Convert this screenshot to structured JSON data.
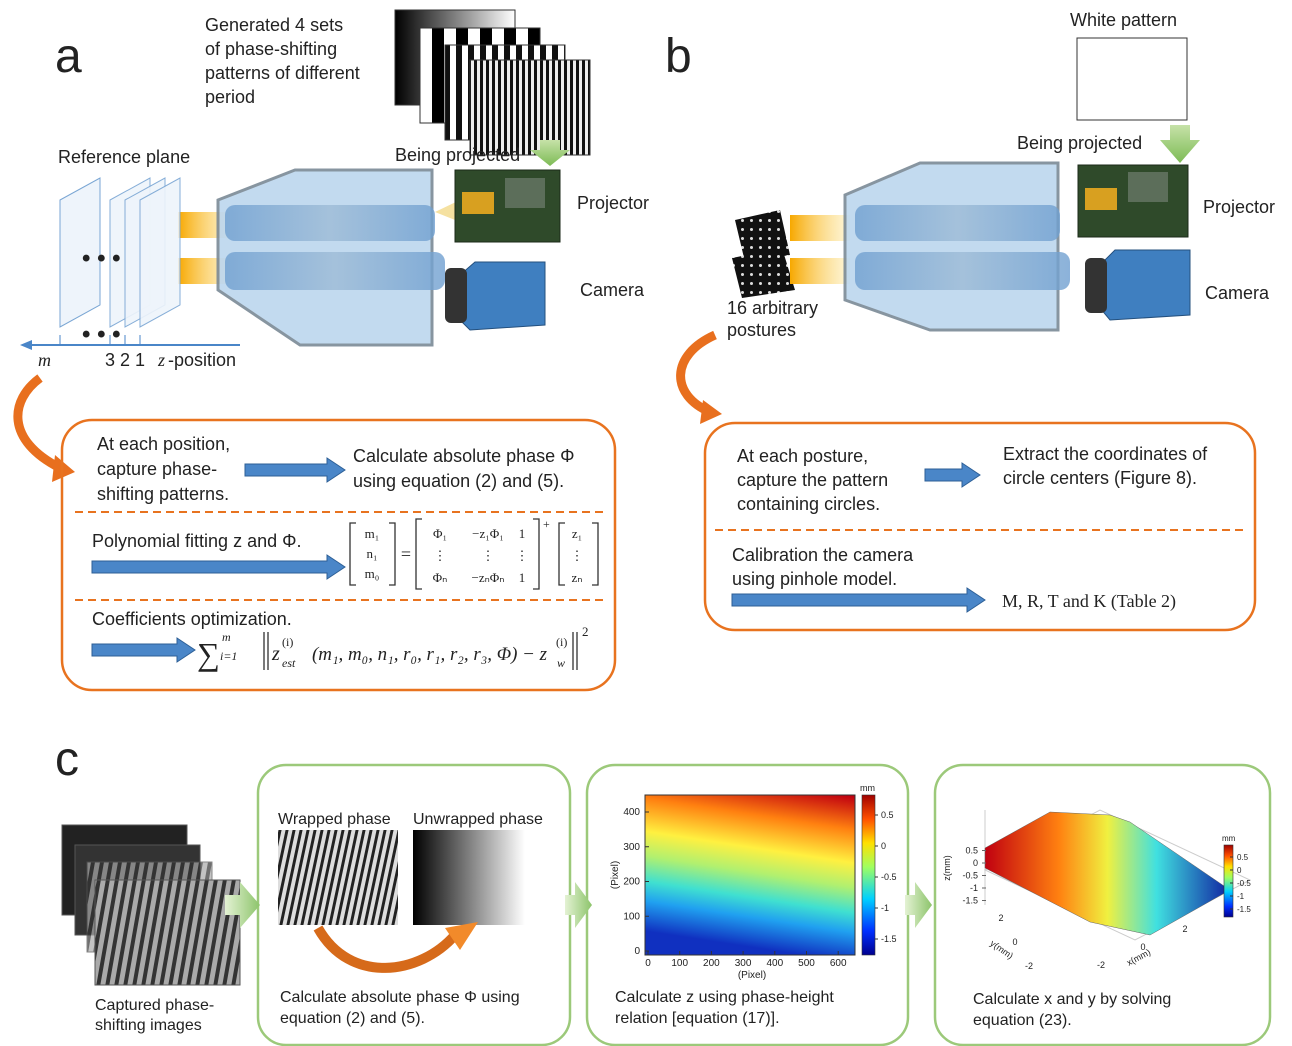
{
  "panel_a": {
    "label": "a",
    "pattern_caption": [
      "Generated 4 sets",
      "of phase-shifting",
      "patterns of different",
      "period"
    ],
    "being_projected": "Being projected",
    "reference_plane": "Reference plane",
    "projector": "Projector",
    "camera": "Camera",
    "plane_axis": {
      "m": "m",
      "positions": "3 2 1",
      "z": "z",
      "z_position": "-position"
    },
    "step1": {
      "left": [
        "At each position,",
        "capture phase-",
        "shifting patterns."
      ],
      "right": [
        "Calculate absolute phase Φ",
        "using equation (2) and (5)."
      ]
    },
    "step2": {
      "text": "Polynomial fitting z and Φ.",
      "matrix_lhs": [
        "m₁",
        "n₁",
        "m₀"
      ],
      "equals": "=",
      "matrix_a": [
        [
          "Φ₁",
          "−z₁Φ₁",
          "1"
        ],
        [
          "⋮",
          "⋮",
          "⋮"
        ],
        [
          "Φₙ",
          "−zₙΦₙ",
          "1"
        ]
      ],
      "pseudo_inverse": "+",
      "matrix_rhs": [
        "z₁",
        "⋮",
        "zₙ"
      ]
    },
    "step3": {
      "text": "Coefficients optimization.",
      "formula": {
        "sum": "∑",
        "upper": "m",
        "lower": "i=1",
        "z": "z",
        "sup1": "(i)",
        "sub1": "est",
        "args": "(m₁, m₀, n₁, r₀, r₁, r₂, r₃, Φ) − z",
        "sup2": "(i)",
        "sub2": "w",
        "power": "2"
      }
    }
  },
  "panel_b": {
    "label": "b",
    "white_pattern": "White pattern",
    "being_projected": "Being projected",
    "projector": "Projector",
    "camera": "Camera",
    "postures": [
      "16 arbitrary",
      "postures"
    ],
    "step1": {
      "left": [
        "At each posture,",
        "capture the pattern",
        "containing circles."
      ],
      "right": [
        "Extract the coordinates of",
        "circle centers (Figure 8)."
      ]
    },
    "step2": {
      "left": [
        "Calibration the camera",
        "using pinhole model."
      ],
      "right": "M, R, T and K (Table 2)"
    }
  },
  "panel_c": {
    "label": "c",
    "captured_caption": [
      "Captured phase-",
      "shifting images"
    ],
    "step1": {
      "wrapped": "Wrapped phase",
      "unwrapped": "Unwrapped phase",
      "caption": [
        "Calculate absolute phase Φ using",
        "equation (2) and (5)."
      ]
    },
    "step2": {
      "plot": {
        "xlabel": "(Pixel)",
        "ylabel": "(Pixel)",
        "xticks": [
          0,
          100,
          200,
          300,
          400,
          500,
          600
        ],
        "yticks": [
          0,
          100,
          200,
          300,
          400
        ],
        "colorbar_unit": "mm",
        "colorbar_ticks": [
          0.5,
          0,
          -0.5,
          -1,
          -1.5
        ]
      },
      "caption": [
        "Calculate z using phase-height",
        "relation [equation (17)]."
      ]
    },
    "step3": {
      "plot": {
        "xlabel": "x(mm)",
        "ylabel": "y(mm)",
        "zlabel": "z(mm)",
        "xticks": [
          -2,
          0,
          2
        ],
        "yticks": [
          2,
          0,
          -2
        ],
        "zticks": [
          0.5,
          0,
          -0.5,
          -1,
          -1.5
        ],
        "colorbar_unit": "mm",
        "colorbar_ticks": [
          0.5,
          0,
          -0.5,
          -1,
          -1.5
        ]
      },
      "caption": [
        "Calculate x and y  by solving",
        "equation (23)."
      ]
    }
  }
}
